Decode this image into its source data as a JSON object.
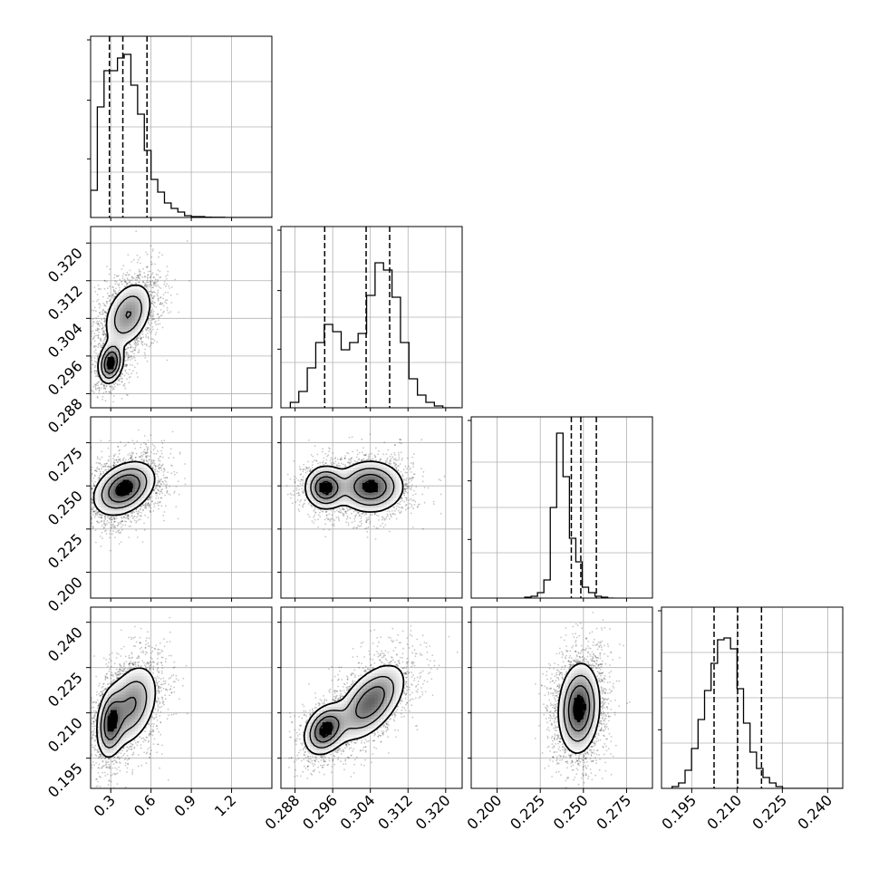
{
  "chart_data": {
    "type": "corner",
    "grid": true,
    "parameters": [
      {
        "range": [
          0.15,
          1.5
        ],
        "ticks": [
          0.3,
          0.6,
          0.9,
          1.2
        ],
        "tick_labels": [
          "0.3",
          "0.6",
          "0.9",
          "1.2"
        ],
        "quantiles": [
          0.29,
          0.39,
          0.57
        ],
        "histogram": {
          "edges_start": 0.15,
          "bin_width": 0.05,
          "counts": [
            0.15,
            0.61,
            0.81,
            0.81,
            0.88,
            0.9,
            0.73,
            0.57,
            0.37,
            0.21,
            0.14,
            0.08,
            0.05,
            0.03,
            0.01,
            0.005,
            0.005,
            0.002,
            0.001,
            0.001,
            0.0,
            0.0,
            0.0,
            0.0,
            0.0,
            0.0,
            0.0
          ]
        }
      },
      {
        "range": [
          0.285,
          0.3235
        ],
        "ticks": [
          0.288,
          0.296,
          0.304,
          0.312,
          0.32
        ],
        "tick_labels": [
          "0.288",
          "0.296",
          "0.304",
          "0.312",
          "0.320"
        ],
        "quantiles": [
          0.2943,
          0.3031,
          0.3081
        ],
        "histogram": {
          "edges_start": 0.287,
          "bin_width": 0.0018,
          "counts": [
            0.03,
            0.09,
            0.22,
            0.36,
            0.46,
            0.42,
            0.32,
            0.36,
            0.41,
            0.62,
            0.8,
            0.76,
            0.61,
            0.36,
            0.16,
            0.07,
            0.03,
            0.01,
            0.0,
            0.0
          ]
        }
      },
      {
        "range": [
          0.185,
          0.29
        ],
        "ticks": [
          0.2,
          0.225,
          0.25,
          0.275
        ],
        "tick_labels": [
          "0.200",
          "0.225",
          "0.250",
          "0.275"
        ],
        "quantiles": [
          0.243,
          0.2485,
          0.2575
        ],
        "histogram": {
          "edges_start": 0.216,
          "bin_width": 0.0037,
          "counts": [
            0.005,
            0.01,
            0.03,
            0.1,
            0.5,
            0.91,
            0.67,
            0.33,
            0.2,
            0.06,
            0.03,
            0.01,
            0.005,
            0.0
          ]
        }
      },
      {
        "range": [
          0.185,
          0.245
        ],
        "ticks": [
          0.195,
          0.21,
          0.225,
          0.24
        ],
        "tick_labels": [
          "0.195",
          "0.210",
          "0.225",
          "0.240"
        ],
        "quantiles": [
          0.2024,
          0.2102,
          0.2181
        ],
        "histogram": {
          "edges_start": 0.1885,
          "bin_width": 0.00215,
          "counts": [
            0.01,
            0.03,
            0.1,
            0.22,
            0.38,
            0.54,
            0.69,
            0.82,
            0.83,
            0.77,
            0.55,
            0.36,
            0.2,
            0.11,
            0.06,
            0.03,
            0.01,
            0.0,
            0.0,
            0.0,
            0.0,
            0.0,
            0.0,
            0.0,
            0.0,
            0.0,
            0.0,
            0.0
          ]
        }
      }
    ],
    "pairs": [
      {
        "row": 1,
        "col": 0,
        "modes": [
          {
            "x": 0.3,
            "y": 0.2945,
            "sx": 0.045,
            "sy": 0.0021,
            "rho": 0.2,
            "w": 0.35
          },
          {
            "x": 0.43,
            "y": 0.3048,
            "sx": 0.09,
            "sy": 0.0035,
            "rho": 0.35,
            "w": 0.65
          }
        ]
      },
      {
        "row": 2,
        "col": 0,
        "modes": [
          {
            "x": 0.4,
            "y": 0.2485,
            "sx": 0.11,
            "sy": 0.0075,
            "rho": 0.35,
            "w": 1.0
          }
        ]
      },
      {
        "row": 2,
        "col": 1,
        "modes": [
          {
            "x": 0.2945,
            "y": 0.249,
            "sx": 0.0021,
            "sy": 0.006,
            "rho": 0.0,
            "w": 0.35
          },
          {
            "x": 0.304,
            "y": 0.2495,
            "sx": 0.0034,
            "sy": 0.0072,
            "rho": 0.0,
            "w": 0.65
          }
        ]
      },
      {
        "row": 3,
        "col": 0,
        "modes": [
          {
            "x": 0.3,
            "y": 0.2065,
            "sx": 0.05,
            "sy": 0.0055,
            "rho": 0.2,
            "w": 0.35
          },
          {
            "x": 0.45,
            "y": 0.2125,
            "sx": 0.1,
            "sy": 0.0068,
            "rho": 0.35,
            "w": 0.65
          }
        ]
      },
      {
        "row": 3,
        "col": 1,
        "modes": [
          {
            "x": 0.2945,
            "y": 0.2045,
            "sx": 0.0022,
            "sy": 0.004,
            "rho": 0.3,
            "w": 0.35
          },
          {
            "x": 0.304,
            "y": 0.2135,
            "sx": 0.0036,
            "sy": 0.0062,
            "rho": 0.55,
            "w": 0.65
          }
        ]
      },
      {
        "row": 3,
        "col": 2,
        "modes": [
          {
            "x": 0.2475,
            "y": 0.2115,
            "sx": 0.0058,
            "sy": 0.0072,
            "rho": 0.1,
            "w": 1.0
          }
        ]
      }
    ]
  }
}
